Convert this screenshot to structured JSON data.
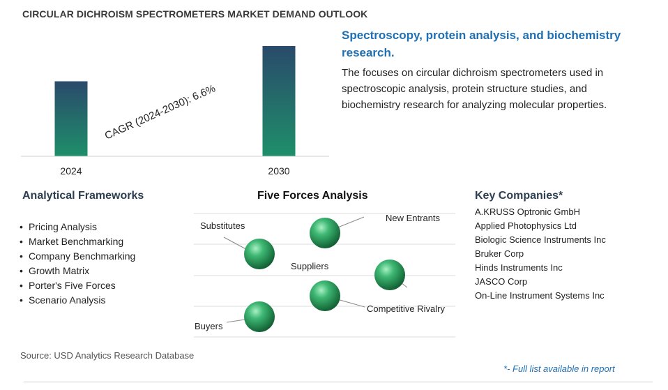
{
  "title": "CIRCULAR DICHROISM SPECTROMETERS MARKET DEMAND OUTLOOK",
  "chart_data": {
    "type": "bar",
    "categories": [
      "2024",
      "2030"
    ],
    "values": [
      1.0,
      1.47
    ],
    "annotation": "CAGR (2024-2030):   6.6%",
    "colors": {
      "bar_top": "#2a4a6b",
      "bar_bottom": "#1e8f6a"
    }
  },
  "headline": "Spectroscopy, protein analysis, and biochemistry research.",
  "description": "The focuses on circular dichroism spectrometers used in spectroscopic analysis, protein structure studies, and biochemistry research for analyzing molecular properties.",
  "frameworks": {
    "title": "Analytical Frameworks",
    "items": [
      "Pricing Analysis",
      "Market Benchmarking",
      "Company Benchmarking",
      "Growth Matrix",
      "Porter's Five Forces",
      "Scenario Analysis"
    ]
  },
  "five_forces": {
    "title": "Five Forces Analysis",
    "labels": {
      "substitutes": "Substitutes",
      "new_entrants": "New Entrants",
      "suppliers": "Suppliers",
      "competitive_rivalry": "Competitive Rivalry",
      "buyers": "Buyers"
    },
    "sphere_color": "#2e9e5e"
  },
  "companies": {
    "title": "Key Companies*",
    "items": [
      "A.KRUSS Optronic GmbH",
      "Applied Photophysics Ltd",
      "Biologic Science Instruments Inc",
      "Bruker Corp",
      "Hinds Instruments Inc",
      "JASCO Corp",
      "On-Line Instrument Systems Inc"
    ]
  },
  "source": "Source: USD Analytics Research Database",
  "footnote": "*- Full list available in report"
}
